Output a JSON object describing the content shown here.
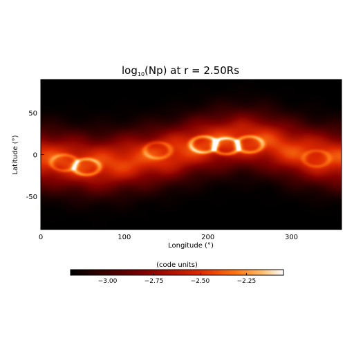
{
  "chart_data": {
    "type": "heatmap",
    "title_prefix": "log",
    "title_subscript": "10",
    "title_rest": "(Np) at r = 2.50Rs",
    "xlabel": "Longitude (°)",
    "ylabel": "Latitude (°)",
    "xlim": [
      0,
      360
    ],
    "ylim": [
      -90,
      90
    ],
    "xticks": [
      0,
      100,
      200,
      300
    ],
    "yticks": [
      -50,
      0,
      50
    ],
    "colorbar": {
      "label": "(code units)",
      "range": [
        -3.2,
        -2.05
      ],
      "ticks": [
        -3.0,
        -2.75,
        -2.5,
        -2.25
      ],
      "tick_labels": [
        "−3.00",
        "−2.75",
        "−2.50",
        "−2.25"
      ],
      "colormap": "black-red-orange-white"
    },
    "features": {
      "band_centerline_lat_vs_lon": [
        [
          0,
          -5
        ],
        [
          30,
          -8
        ],
        [
          60,
          -12
        ],
        [
          90,
          -10
        ],
        [
          120,
          -5
        ],
        [
          150,
          0
        ],
        [
          180,
          8
        ],
        [
          210,
          15
        ],
        [
          240,
          18
        ],
        [
          270,
          15
        ],
        [
          300,
          5
        ],
        [
          330,
          -2
        ],
        [
          360,
          -5
        ]
      ],
      "bright_cells": [
        {
          "lon": 28,
          "lat": -10,
          "value": -2.3
        },
        {
          "lon": 55,
          "lat": -15,
          "value": -2.2
        },
        {
          "lon": 140,
          "lat": 5,
          "value": -2.3
        },
        {
          "lon": 195,
          "lat": 12,
          "value": -2.15
        },
        {
          "lon": 222,
          "lat": 10,
          "value": -2.15
        },
        {
          "lon": 250,
          "lat": 12,
          "value": -2.2
        },
        {
          "lon": 330,
          "lat": -5,
          "value": -2.35
        }
      ],
      "background_value": -3.2
    }
  }
}
